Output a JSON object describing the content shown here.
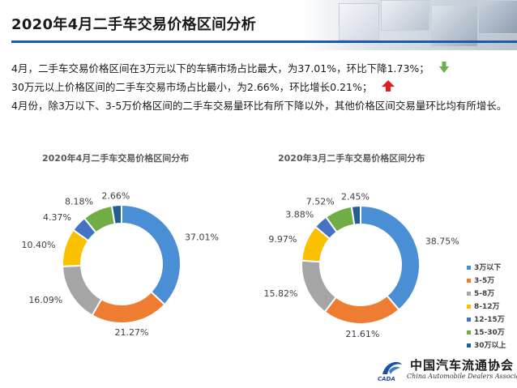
{
  "header": {
    "title": "2020年4月二手车交易价格区间分析"
  },
  "summary": {
    "line1": "4月，二手车交易价格区间在3万元以下的车辆市场占比最大，为37.01%，环比下降1.73%；",
    "line2": "30万元以上价格区间的二手车交易市场占比最小，为2.66%，环比增长0.21%；",
    "line3": "4月份，除3万以下、3-5万价格区间的二手车交易量环比有所下降以外，其他价格区间交易量环比均有所增长。",
    "icons": {
      "down": "green-down-arrow-icon",
      "up": "red-up-arrow-icon"
    },
    "colors": {
      "down": "#6ab04c",
      "up": "#e02020"
    }
  },
  "chart_data": [
    {
      "type": "pie",
      "title": "2020年4月二手车交易价格区间分布",
      "categories": [
        "3万以下",
        "3-5万",
        "5-8万",
        "8-12万",
        "12-15万",
        "15-30万",
        "30万以上"
      ],
      "values": [
        37.01,
        21.27,
        16.09,
        10.4,
        4.37,
        8.18,
        2.66
      ],
      "labels": [
        "37.01%",
        "21.27%",
        "16.09%",
        "10.40%",
        "4.37%",
        "8.18%",
        "2.66%"
      ],
      "colors": [
        "#4a8fd6",
        "#ee7d31",
        "#a5a5a5",
        "#fbc100",
        "#4473c4",
        "#70ad46",
        "#255e91"
      ],
      "donut": true
    },
    {
      "type": "pie",
      "title": "2020年3月二手车交易价格区间分布",
      "categories": [
        "3万以下",
        "3-5万",
        "5-8万",
        "8-12万",
        "12-15万",
        "15-30万",
        "30万以上"
      ],
      "values": [
        38.75,
        21.61,
        15.82,
        9.97,
        3.88,
        7.52,
        2.45
      ],
      "labels": [
        "38.75%",
        "21.61%",
        "15.82%",
        "9.97%",
        "3.88%",
        "7.52%",
        "2.45%"
      ],
      "colors": [
        "#4a8fd6",
        "#ee7d31",
        "#a5a5a5",
        "#fbc100",
        "#4473c4",
        "#70ad46",
        "#255e91"
      ],
      "donut": true,
      "legend": "right"
    }
  ],
  "logo": {
    "name": "中国汽车流通协会",
    "abbr": "CADA",
    "subtitle": "China Automobile Dealers Association"
  }
}
